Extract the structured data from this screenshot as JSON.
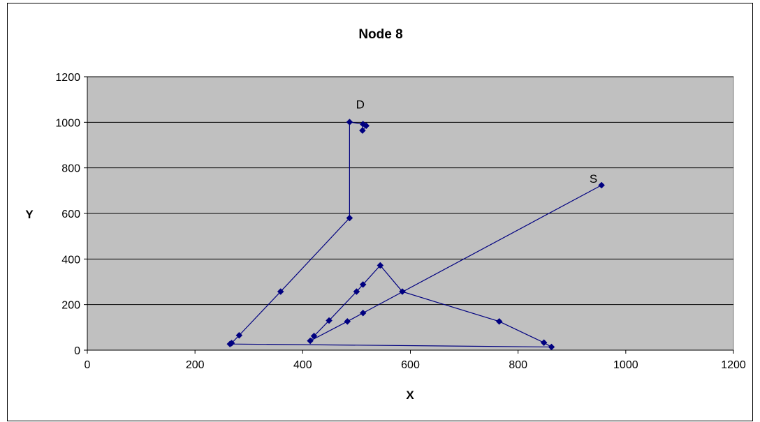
{
  "chart_data": {
    "type": "scatter",
    "title": "Node 8",
    "xlabel": "X",
    "ylabel": "Y",
    "xlim": [
      0,
      1200
    ],
    "ylim": [
      0,
      1200
    ],
    "xticks": [
      0,
      200,
      400,
      600,
      800,
      1000,
      1200
    ],
    "yticks": [
      0,
      200,
      400,
      600,
      800,
      1000,
      1200
    ],
    "grid": "horizontal",
    "plot_background": "#c0c0c0",
    "series_color": "#000080",
    "series": [
      {
        "x": [
          955,
          512,
          483,
          414,
          421,
          449,
          500,
          512,
          544,
          585,
          765,
          848,
          862,
          265,
          268,
          282,
          359,
          487,
          487,
          512,
          511,
          518
        ],
        "y": [
          724,
          163,
          126,
          41,
          62,
          130,
          257,
          288,
          372,
          257,
          126,
          33,
          14,
          27,
          31,
          65,
          257,
          580,
          1001,
          992,
          964,
          985
        ]
      }
    ],
    "annotations": [
      {
        "text": "D",
        "x": 507,
        "y": 1060
      },
      {
        "text": "S",
        "x": 940,
        "y": 735
      }
    ]
  }
}
